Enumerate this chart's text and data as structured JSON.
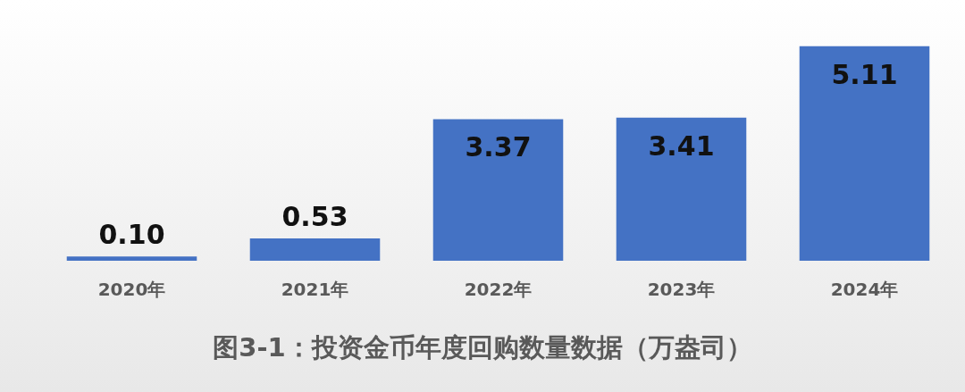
{
  "chart_data": {
    "type": "bar",
    "title": "图3-1：投资金币年度回购数量数据（万盎司）",
    "categories": [
      "2020年",
      "2021年",
      "2022年",
      "2023年",
      "2024年"
    ],
    "values": [
      0.1,
      0.53,
      3.37,
      3.41,
      5.11
    ],
    "color": "#4472c4",
    "value_labels": [
      "0.10",
      "0.53",
      "3.37",
      "3.41",
      "5.11"
    ],
    "grid": false,
    "legend": false,
    "tick_labels": "x"
  }
}
